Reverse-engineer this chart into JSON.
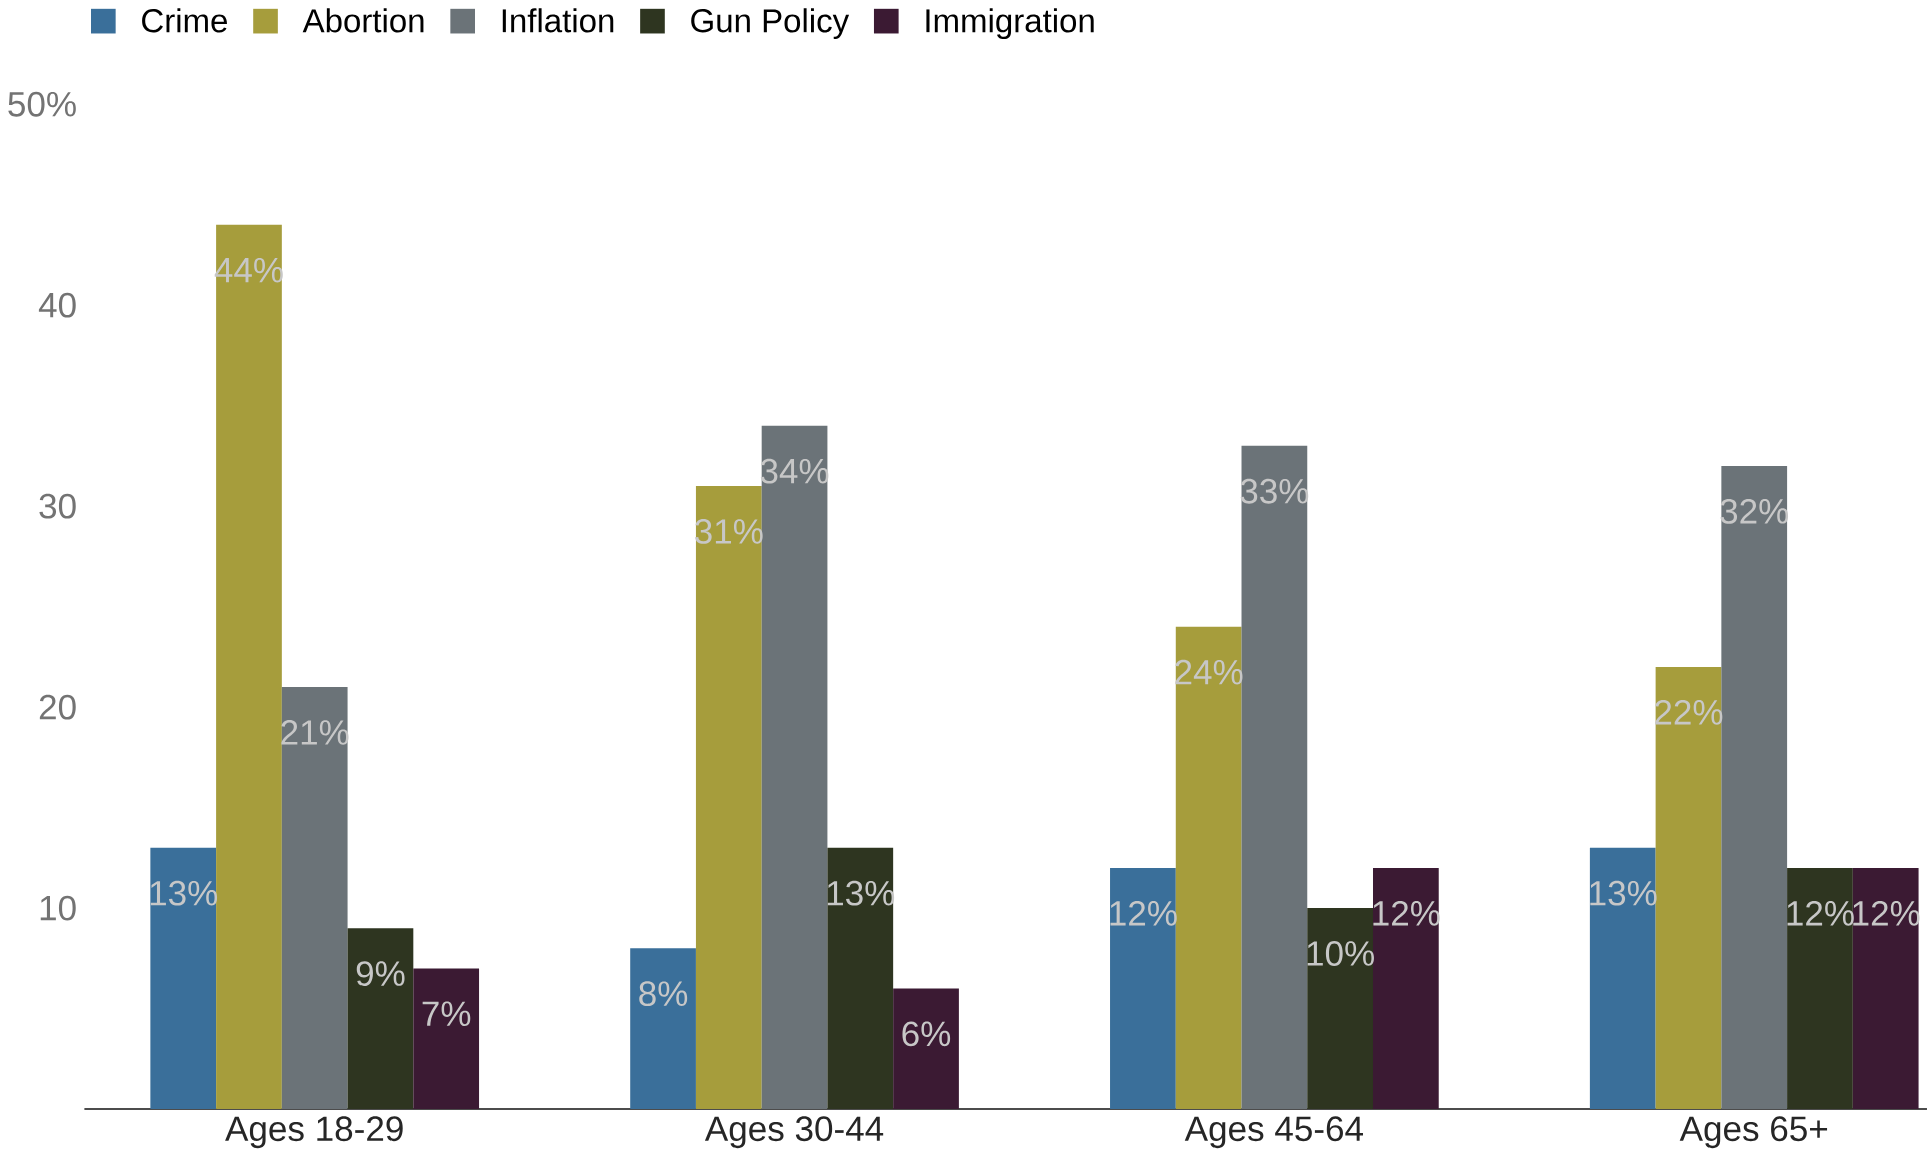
{
  "chart_data": {
    "type": "bar",
    "categories": [
      "Ages 18-29",
      "Ages 30-44",
      "Ages 45-64",
      "Ages 65+"
    ],
    "series": [
      {
        "name": "Crime",
        "color": "#3a6f9a",
        "values": [
          13,
          8,
          12,
          13
        ],
        "value_labels": [
          "13%",
          "8%",
          "12%",
          "13%"
        ]
      },
      {
        "name": "Abortion",
        "color": "#a69d3c",
        "values": [
          44,
          31,
          24,
          22
        ],
        "value_labels": [
          "44%",
          "31%",
          "24%",
          "22%"
        ]
      },
      {
        "name": "Inflation",
        "color": "#6b7378",
        "values": [
          21,
          34,
          33,
          32
        ],
        "value_labels": [
          "21%",
          "34%",
          "33%",
          "32%"
        ]
      },
      {
        "name": "Gun Policy",
        "color": "#2e3520",
        "values": [
          9,
          13,
          10,
          12
        ],
        "value_labels": [
          "9%",
          "13%",
          "10%",
          "12%"
        ]
      },
      {
        "name": "Immigration",
        "color": "#3b1a33",
        "values": [
          7,
          6,
          12,
          12
        ],
        "value_labels": [
          "7%",
          "6%",
          "12%",
          "12%"
        ]
      }
    ],
    "ylim": [
      0,
      50
    ],
    "yticks": [
      10,
      20,
      30,
      40,
      {
        "value": 50,
        "label": "50%"
      }
    ],
    "grid": false,
    "legend": "top left"
  }
}
